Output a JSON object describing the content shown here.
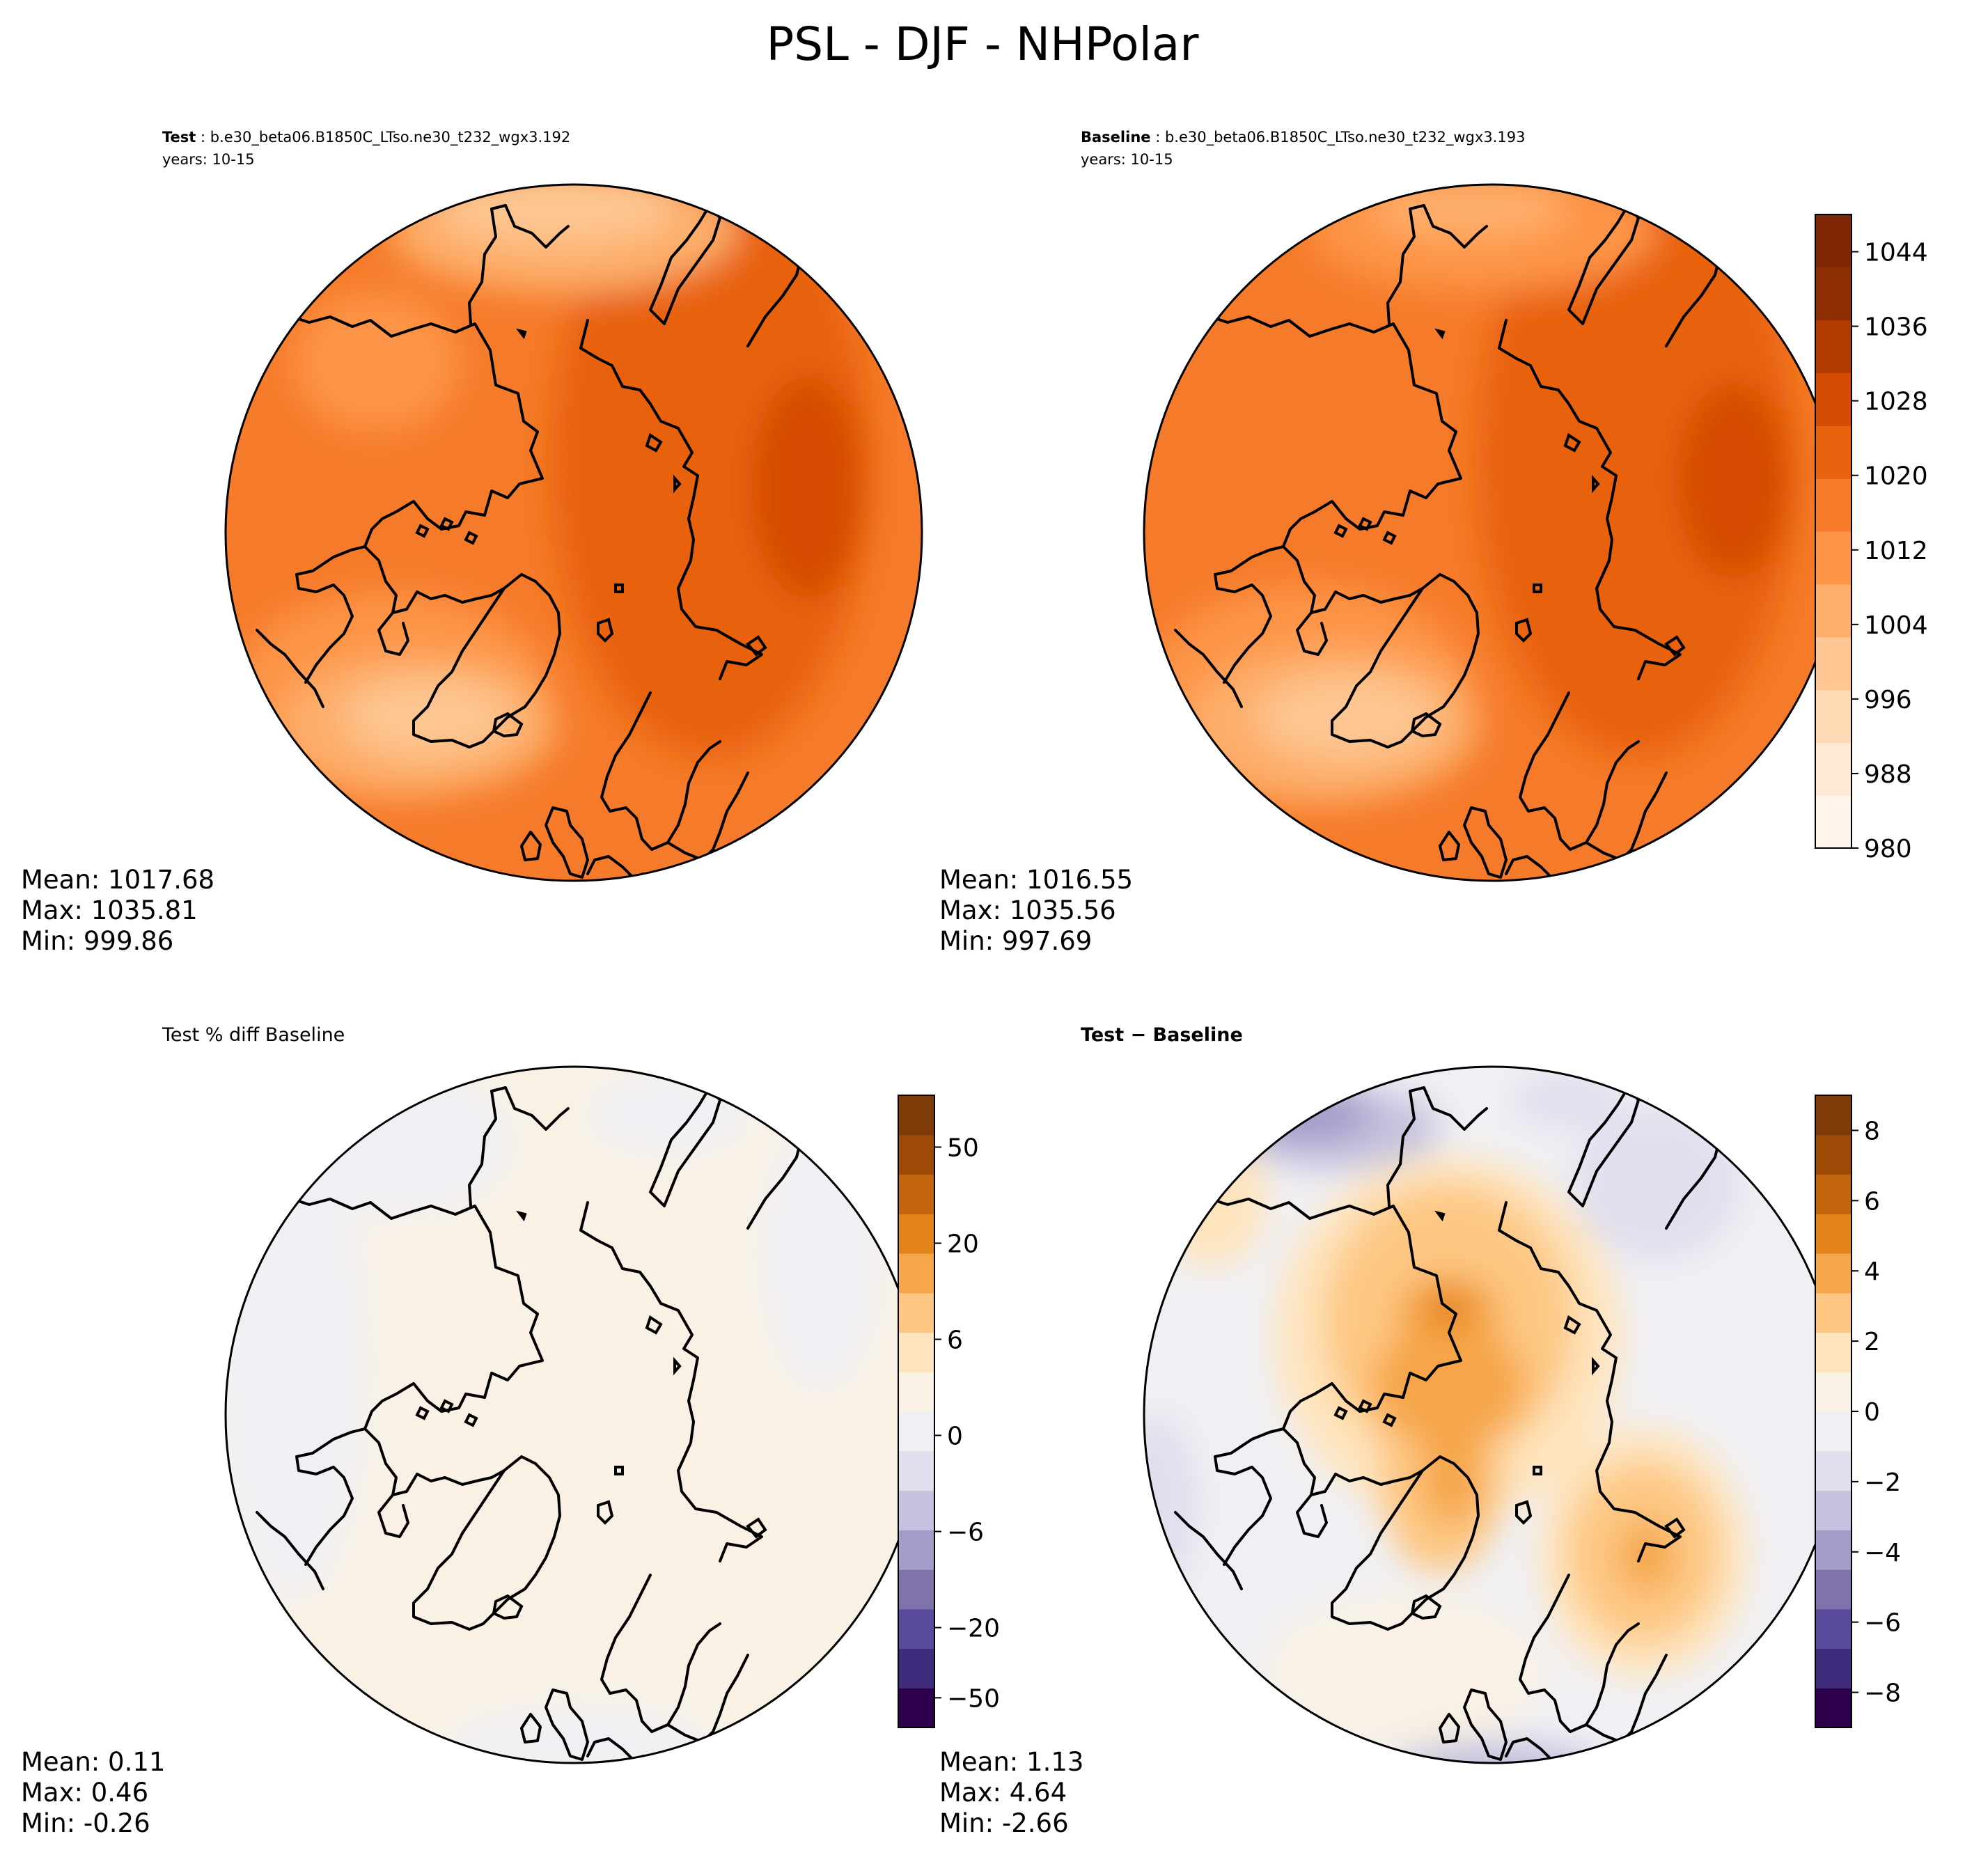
{
  "figure": {
    "title": "PSL - DJF - NHPolar"
  },
  "panels": [
    {
      "id": "test",
      "header_bold": "Test",
      "header_rest": " : b.e30_beta06.B1850C_LTso.ne30_t232_wgx3.192",
      "years": "years: 10-15",
      "stats": {
        "mean": "Mean: 1017.68",
        "max": "Max: 1035.81",
        "min": "Min: 999.86"
      }
    },
    {
      "id": "baseline",
      "header_bold": "Baseline",
      "header_rest": " : b.e30_beta06.B1850C_LTso.ne30_t232_wgx3.193",
      "years": "years: 10-15",
      "stats": {
        "mean": "Mean: 1016.55",
        "max": "Max: 1035.56",
        "min": "Min: 997.69"
      }
    },
    {
      "id": "pctdiff",
      "header_plain": "Test % diff Baseline",
      "stats": {
        "mean": "Mean:  0.11",
        "max": "Max:  0.46",
        "min": "Min: -0.26"
      }
    },
    {
      "id": "diff",
      "header_bold": "Test − Baseline",
      "stats": {
        "mean": "Mean:  1.13",
        "max": "Max:  4.64",
        "min": "Min: -2.66"
      }
    }
  ],
  "colorbars": {
    "main": {
      "ticks": [
        "1044",
        "1036",
        "1028",
        "1020",
        "1012",
        "1004",
        "996",
        "988",
        "980"
      ],
      "tick_values": [
        1044,
        1036,
        1028,
        1020,
        1012,
        1004,
        996,
        988,
        980
      ],
      "range": [
        980,
        1048
      ],
      "colors": [
        "#fff5eb",
        "#fee9d4",
        "#fdd9b4",
        "#fdc692",
        "#fdae6b",
        "#fd9447",
        "#f57b2a",
        "#e8620f",
        "#d44b04",
        "#b23b02",
        "#8c2d04",
        "#7f2704"
      ]
    },
    "pctdiff": {
      "ticks": [
        "50",
        "20",
        "6",
        "0",
        "−6",
        "−20",
        "−50"
      ],
      "tick_values": [
        50,
        20,
        6,
        0,
        -6,
        -20,
        -50
      ]
    },
    "diff": {
      "ticks": [
        "8",
        "6",
        "4",
        "2",
        "0",
        "−2",
        "−4",
        "−6",
        "−8"
      ],
      "tick_values": [
        8,
        6,
        4,
        2,
        0,
        -2,
        -4,
        -6,
        -8
      ],
      "range": [
        -9,
        9
      ]
    },
    "diverging_colors": [
      "#2d004b",
      "#402c7c",
      "#5a4a9b",
      "#8073ac",
      "#a39cc9",
      "#c4c2de",
      "#dfdfee",
      "#f0f0f4",
      "#f9f1e4",
      "#fee4bd",
      "#fdc783",
      "#f6a64a",
      "#e4851b",
      "#c2650c",
      "#9c4a06",
      "#7f3b08"
    ]
  }
}
